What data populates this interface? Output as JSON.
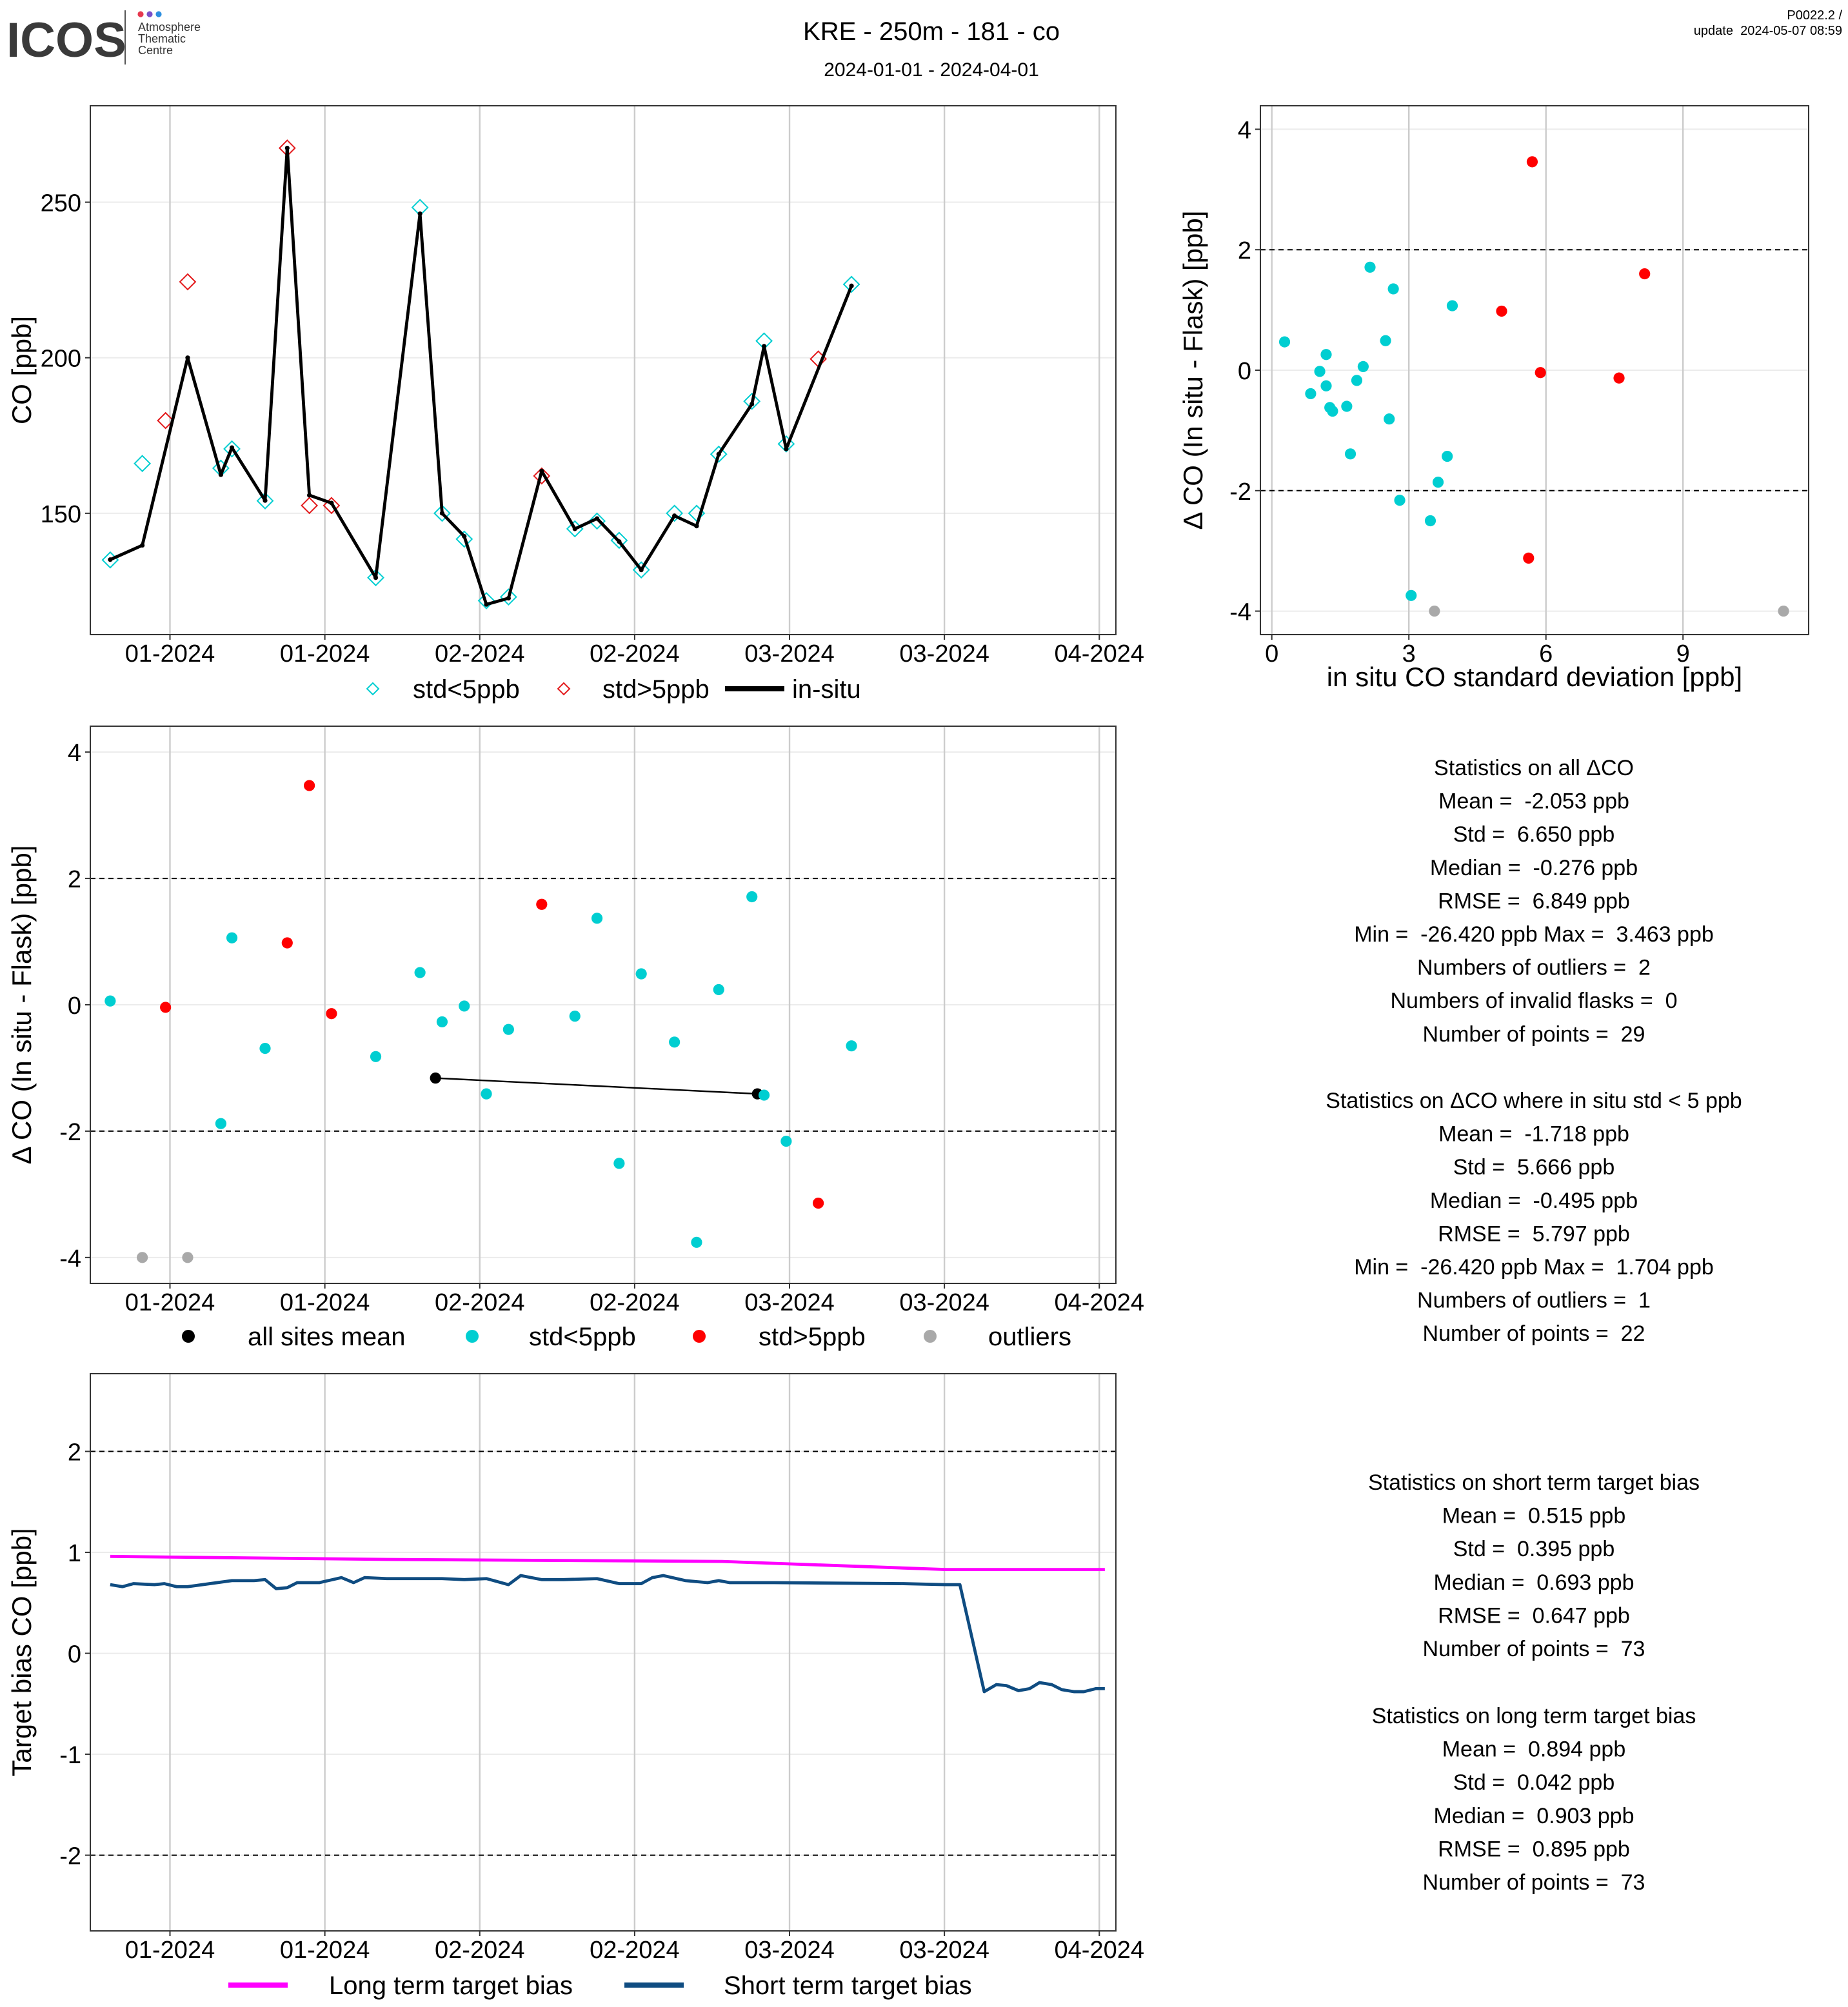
{
  "header": {
    "logo": "ICOS",
    "logo_subtitle": [
      "Atmosphere",
      "Thematic",
      "Centre"
    ],
    "title": "KRE - 250m - 181 - co",
    "subtitle": "2024-01-01 - 2024-04-01",
    "version": "P0022.2 /",
    "update": "update  2024-05-07 08:59"
  },
  "chart_data": [
    {
      "type": "line",
      "ylabel": "CO [ppb]",
      "xlim": [
        0.8,
        93.5
      ],
      "xticks": [
        {
          "value": 8,
          "label": "01-2024"
        },
        {
          "value": 22,
          "label": "01-2024"
        },
        {
          "value": 36,
          "label": "02-2024"
        },
        {
          "value": 50,
          "label": "02-2024"
        },
        {
          "value": 64,
          "label": "03-2024"
        },
        {
          "value": 78,
          "label": "03-2024"
        },
        {
          "value": 92,
          "label": "04-2024"
        }
      ],
      "ylim": [
        111,
        281
      ],
      "yticks": [
        150,
        200,
        250
      ],
      "grid": true,
      "series": [
        {
          "name": "std<5ppb",
          "mode": "markers",
          "marker": "diamond",
          "color": "#00CED1",
          "x": [
            2.6,
            5.5,
            12.6,
            13.6,
            16.6,
            26.6,
            30.6,
            32.6,
            34.6,
            36.6,
            38.6,
            44.6,
            46.6,
            48.6,
            50.6,
            53.6,
            55.6,
            57.6,
            60.6,
            61.7,
            63.7,
            69.6
          ],
          "values": [
            135,
            166,
            164.5,
            170.7,
            154,
            129.3,
            248.3,
            150,
            141.7,
            121.9,
            123.1,
            145,
            147.5,
            141.3,
            131.8,
            150,
            150,
            169,
            186,
            205.4,
            172.3,
            223.6
          ]
        },
        {
          "name": "std>5ppb",
          "mode": "markers",
          "marker": "diamond",
          "color": "#E31A1C",
          "x": [
            7.6,
            9.6,
            18.6,
            20.6,
            22.6,
            41.6,
            66.6
          ],
          "values": [
            179.8,
            224.4,
            267.4,
            152.5,
            152.5,
            162,
            199.6
          ]
        },
        {
          "name": "in-situ",
          "mode": "lines+markers",
          "marker": "point",
          "color": "#000000",
          "x": [
            2.6,
            5.5,
            9.6,
            12.6,
            13.6,
            16.6,
            18.6,
            20.6,
            22.6,
            26.6,
            30.6,
            32.6,
            34.6,
            36.6,
            38.6,
            41.6,
            44.6,
            46.6,
            48.6,
            50.6,
            53.6,
            55.6,
            57.6,
            60.6,
            61.7,
            63.7,
            69.6
          ],
          "values": [
            135.1,
            139.7,
            200,
            162.4,
            171.1,
            154.1,
            267.4,
            155.8,
            153.3,
            129.3,
            246.3,
            150,
            142.6,
            120.7,
            122.7,
            163.6,
            145,
            148.3,
            140.9,
            131.8,
            149.2,
            145.9,
            169,
            185.1,
            203.7,
            170.7,
            223.1
          ]
        }
      ]
    },
    {
      "type": "scatter",
      "xlabel": "in situ CO standard deviation [ppb]",
      "ylabel": "Δ CO (In situ - Flask) [ppb]",
      "xlim": [
        -0.25,
        11.75
      ],
      "xticks": [
        0,
        3,
        6,
        9
      ],
      "ylim": [
        -4.39,
        4.39
      ],
      "yticks": [
        -4,
        -2,
        0,
        2,
        4
      ],
      "reference_lines": [
        2,
        -2
      ],
      "grid": true,
      "series": [
        {
          "mode": "markers",
          "marker": "circle",
          "color": "#00CED1",
          "x": [
            0.28,
            0.85,
            1.05,
            1.19,
            1.19,
            1.27,
            1.33,
            1.64,
            1.72,
            1.86,
            2.0,
            2.15,
            2.49,
            2.57,
            2.66,
            2.8,
            3.05,
            3.47,
            3.64,
            3.84,
            3.95
          ],
          "values": [
            0.47,
            -0.39,
            -0.02,
            0.26,
            -0.26,
            -0.62,
            -0.68,
            -0.6,
            -1.39,
            -0.17,
            0.06,
            1.71,
            0.49,
            -0.81,
            1.35,
            -2.16,
            -3.74,
            -2.5,
            -1.86,
            -1.43,
            1.07
          ]
        },
        {
          "mode": "markers",
          "marker": "circle",
          "color": "#FF0000",
          "x": [
            5.03,
            5.62,
            5.7,
            5.88,
            7.6,
            8.16
          ],
          "values": [
            0.98,
            -3.12,
            3.46,
            -0.04,
            -0.13,
            1.6
          ]
        },
        {
          "mode": "markers",
          "marker": "circle",
          "color": "#A9A9A9",
          "x": [
            3.56,
            11.2
          ],
          "values": [
            -4,
            -4
          ]
        }
      ]
    },
    {
      "type": "line",
      "ylabel": "Δ CO (In situ - Flask) [ppb]",
      "xlim": [
        0.8,
        93.5
      ],
      "xticks": [
        {
          "value": 8,
          "label": "01-2024"
        },
        {
          "value": 22,
          "label": "01-2024"
        },
        {
          "value": 36,
          "label": "02-2024"
        },
        {
          "value": 50,
          "label": "02-2024"
        },
        {
          "value": 64,
          "label": "03-2024"
        },
        {
          "value": 78,
          "label": "03-2024"
        },
        {
          "value": 92,
          "label": "04-2024"
        }
      ],
      "ylim": [
        -4.41,
        4.41
      ],
      "yticks": [
        -4,
        -2,
        0,
        2,
        4
      ],
      "reference_lines": [
        2,
        -2
      ],
      "grid": true,
      "series": [
        {
          "name": "all sites mean",
          "mode": "lines+markers",
          "marker": "circle",
          "color": "#000000",
          "x": [
            32.0,
            61.1
          ],
          "values": [
            -1.16,
            -1.41
          ]
        },
        {
          "name": "std<5ppb",
          "mode": "markers",
          "marker": "circle",
          "color": "#00CED1",
          "x": [
            2.6,
            12.6,
            13.6,
            16.6,
            26.6,
            30.6,
            32.6,
            34.6,
            36.6,
            38.6,
            44.6,
            46.6,
            48.6,
            50.6,
            53.6,
            55.6,
            57.6,
            60.6,
            61.7,
            63.7,
            69.6
          ],
          "values": [
            0.06,
            -1.88,
            1.06,
            -0.69,
            -0.82,
            0.51,
            -0.27,
            -0.02,
            -1.41,
            -0.39,
            -0.18,
            1.37,
            -2.51,
            0.49,
            -0.59,
            -3.76,
            0.24,
            1.71,
            -1.43,
            -2.16,
            -0.65
          ]
        },
        {
          "name": "std>5ppb",
          "mode": "markers",
          "marker": "circle",
          "color": "#FF0000",
          "x": [
            7.6,
            18.6,
            20.6,
            22.6,
            41.6,
            66.6
          ],
          "values": [
            -0.04,
            0.98,
            3.47,
            -0.14,
            1.59,
            -3.14
          ]
        },
        {
          "name": "outliers",
          "mode": "markers",
          "marker": "circle",
          "color": "#A9A9A9",
          "x": [
            5.5,
            9.6
          ],
          "values": [
            -4,
            -4
          ]
        }
      ]
    },
    {
      "type": "line",
      "ylabel": "Target bias CO [ppb]",
      "xlim": [
        0.8,
        93.5
      ],
      "xticks": [
        {
          "value": 8,
          "label": "01-2024"
        },
        {
          "value": 22,
          "label": "01-2024"
        },
        {
          "value": 36,
          "label": "02-2024"
        },
        {
          "value": 50,
          "label": "02-2024"
        },
        {
          "value": 64,
          "label": "03-2024"
        },
        {
          "value": 78,
          "label": "03-2024"
        },
        {
          "value": 92,
          "label": "04-2024"
        }
      ],
      "ylim": [
        -2.75,
        2.77
      ],
      "yticks": [
        -2,
        -1,
        0,
        1,
        2
      ],
      "reference_lines": [
        2,
        -2
      ],
      "grid": true,
      "series": [
        {
          "name": "Long term target bias",
          "mode": "lines",
          "color": "#FF00FF",
          "x": [
            2.6,
            27.6,
            57.9,
            78.1,
            92.5
          ],
          "values": [
            0.96,
            0.93,
            0.91,
            0.83,
            0.83
          ]
        },
        {
          "name": "Short term target bias",
          "mode": "lines",
          "color": "#0F4C81",
          "x": [
            2.6,
            3.7,
            4.7,
            6.6,
            7.5,
            8.6,
            9.6,
            11.6,
            13.6,
            15.6,
            16.6,
            17.6,
            18.6,
            19.5,
            21.5,
            23.5,
            24.6,
            25.6,
            27.6,
            29.6,
            32.6,
            34.6,
            36.6,
            38.6,
            39.7,
            41.6,
            43.6,
            46.6,
            48.6,
            50.6,
            51.6,
            52.6,
            54.6,
            56.6,
            57.6,
            58.6,
            62.6,
            74.3,
            78.1,
            79.4,
            81.6,
            82.7,
            83.6,
            84.7,
            85.7,
            86.6,
            87.7,
            88.6,
            89.7,
            90.6,
            91.7,
            92.5
          ],
          "values": [
            0.68,
            0.66,
            0.69,
            0.68,
            0.69,
            0.66,
            0.66,
            0.69,
            0.72,
            0.72,
            0.73,
            0.64,
            0.65,
            0.7,
            0.7,
            0.75,
            0.7,
            0.75,
            0.74,
            0.74,
            0.74,
            0.73,
            0.74,
            0.68,
            0.77,
            0.73,
            0.73,
            0.74,
            0.69,
            0.69,
            0.75,
            0.77,
            0.72,
            0.7,
            0.72,
            0.7,
            0.7,
            0.69,
            0.68,
            0.68,
            -0.38,
            -0.31,
            -0.32,
            -0.37,
            -0.35,
            -0.29,
            -0.31,
            -0.36,
            -0.38,
            -0.38,
            -0.35,
            -0.35
          ]
        }
      ]
    }
  ],
  "statistics": [
    {
      "title": "Statistics on all ΔCO",
      "lines": [
        "Mean =  -2.053 ppb",
        "Std =  6.650 ppb",
        "Median =  -0.276 ppb",
        "RMSE =  6.849 ppb",
        "Min =  -26.420 ppb Max =  3.463 ppb",
        "Numbers of outliers =  2",
        "Numbers of invalid flasks =  0",
        "Number of points =  29"
      ]
    },
    {
      "title": "Statistics on ΔCO where in situ std < 5 ppb",
      "lines": [
        "Mean =  -1.718 ppb",
        "Std =  5.666 ppb",
        "Median =  -0.495 ppb",
        "RMSE =  5.797 ppb",
        "Min =  -26.420 ppb Max =  1.704 ppb",
        "Numbers of outliers =  1",
        "Number of points =  22"
      ]
    },
    {
      "title": "Statistics on short term target bias",
      "lines": [
        "Mean =  0.515 ppb",
        "Std =  0.395 ppb",
        "Median =  0.693 ppb",
        "RMSE =  0.647 ppb",
        "Number of points =  73"
      ]
    },
    {
      "title": "Statistics on long term target bias",
      "lines": [
        "Mean =  0.894 ppb",
        "Std =  0.042 ppb",
        "Median =  0.903 ppb",
        "RMSE =  0.895 ppb",
        "Number of points =  73"
      ]
    }
  ]
}
